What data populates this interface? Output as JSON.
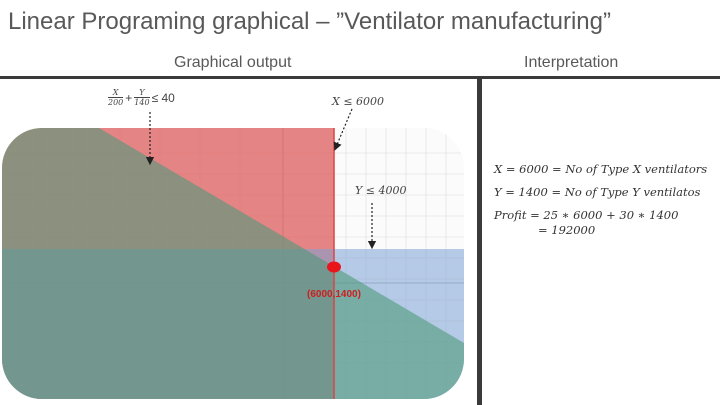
{
  "title": "Linear Programing graphical – ”Ventilator manufacturing”",
  "left_header": "Graphical output",
  "right_header": "Interpretation",
  "annotations": {
    "c1_x": "X",
    "c1_xden": "200",
    "c1_plus": "+",
    "c1_y": "Y",
    "c1_yden": "140",
    "c1_rhs": "≤ 40",
    "c2": "X ≤ 6000",
    "c3": "Y ≤ 4000",
    "point": "(6000,1400)"
  },
  "interpretation": {
    "line1": "X = 6000 = No of Type X ventilators",
    "line2": "Y = 1400 = No of Type Y ventilatos",
    "line3": "Profit = 25 ∗ 6000 + 30 ∗ 1400",
    "line4": "= 192000"
  },
  "colors": {
    "constraint_x": "#e06666",
    "constraint_y": "#7ba3d6",
    "constraint_combined": "#4e9a7a",
    "optimum_point": "#e8161b"
  }
}
